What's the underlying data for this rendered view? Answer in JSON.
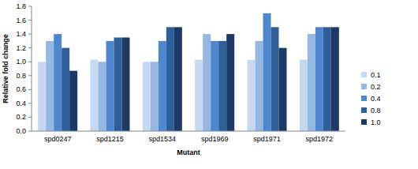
{
  "chart_data": {
    "type": "bar",
    "x_label": "Mutant",
    "y_label": "Relative fold change",
    "categories": [
      "spd0247",
      "spd1215",
      "spd1534",
      "spd1969",
      "spd1971",
      "spd1972"
    ],
    "series": [
      {
        "name": "0.1",
        "color": "#c6d9f1",
        "values": [
          1.0,
          1.03,
          1.0,
          1.03,
          1.03,
          1.03
        ]
      },
      {
        "name": "0.2",
        "color": "#95b8e3",
        "values": [
          1.3,
          1.0,
          1.0,
          1.4,
          1.3,
          1.4
        ]
      },
      {
        "name": "0.4",
        "color": "#4f87cf",
        "values": [
          1.4,
          1.3,
          1.3,
          1.3,
          1.7,
          1.5
        ]
      },
      {
        "name": "0.8",
        "color": "#2f5f98",
        "values": [
          1.2,
          1.35,
          1.5,
          1.3,
          1.5,
          1.5
        ]
      },
      {
        "name": "1.0",
        "color": "#1c3a66",
        "values": [
          0.87,
          1.35,
          1.5,
          1.4,
          1.2,
          1.5
        ]
      }
    ],
    "ylim": [
      0,
      1.8
    ],
    "yticks": [
      {
        "value": 0,
        "label": "0.0"
      },
      0.2,
      0.4,
      0.6,
      0.8,
      {
        "value": 1,
        "label": "1.0"
      },
      1.2,
      1.4,
      1.6,
      1.8
    ],
    "grid": false,
    "legend": "right"
  }
}
